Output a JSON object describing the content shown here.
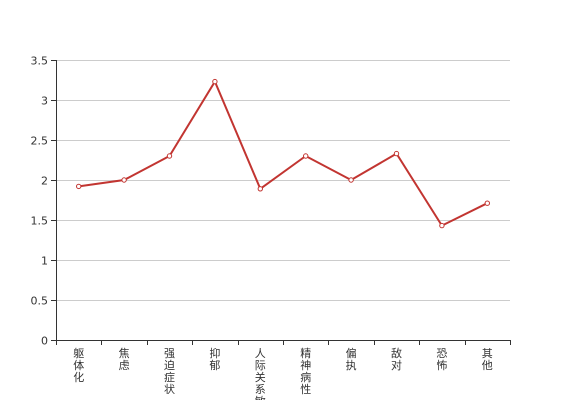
{
  "chart_data": {
    "type": "line",
    "categories": [
      "躯体化",
      "焦虑",
      "强迫症状",
      "抑郁",
      "人际关系敏感",
      "精神病性",
      "偏执",
      "敌对",
      "恐怖",
      "其他"
    ],
    "series": [
      {
        "values": [
          1.92,
          2.0,
          2.3,
          3.23,
          1.89,
          2.3,
          2.0,
          2.33,
          1.43,
          1.71
        ]
      }
    ],
    "y_ticks": [
      "0",
      "0.5",
      "1",
      "1.5",
      "2",
      "2.5",
      "3",
      "3.5"
    ],
    "ylim": [
      0,
      3.5
    ],
    "grid": true,
    "title": "",
    "xlabel": "",
    "ylabel": ""
  },
  "colors": {
    "line": "#c23531",
    "grid": "#cccccc",
    "axis": "#333333"
  }
}
